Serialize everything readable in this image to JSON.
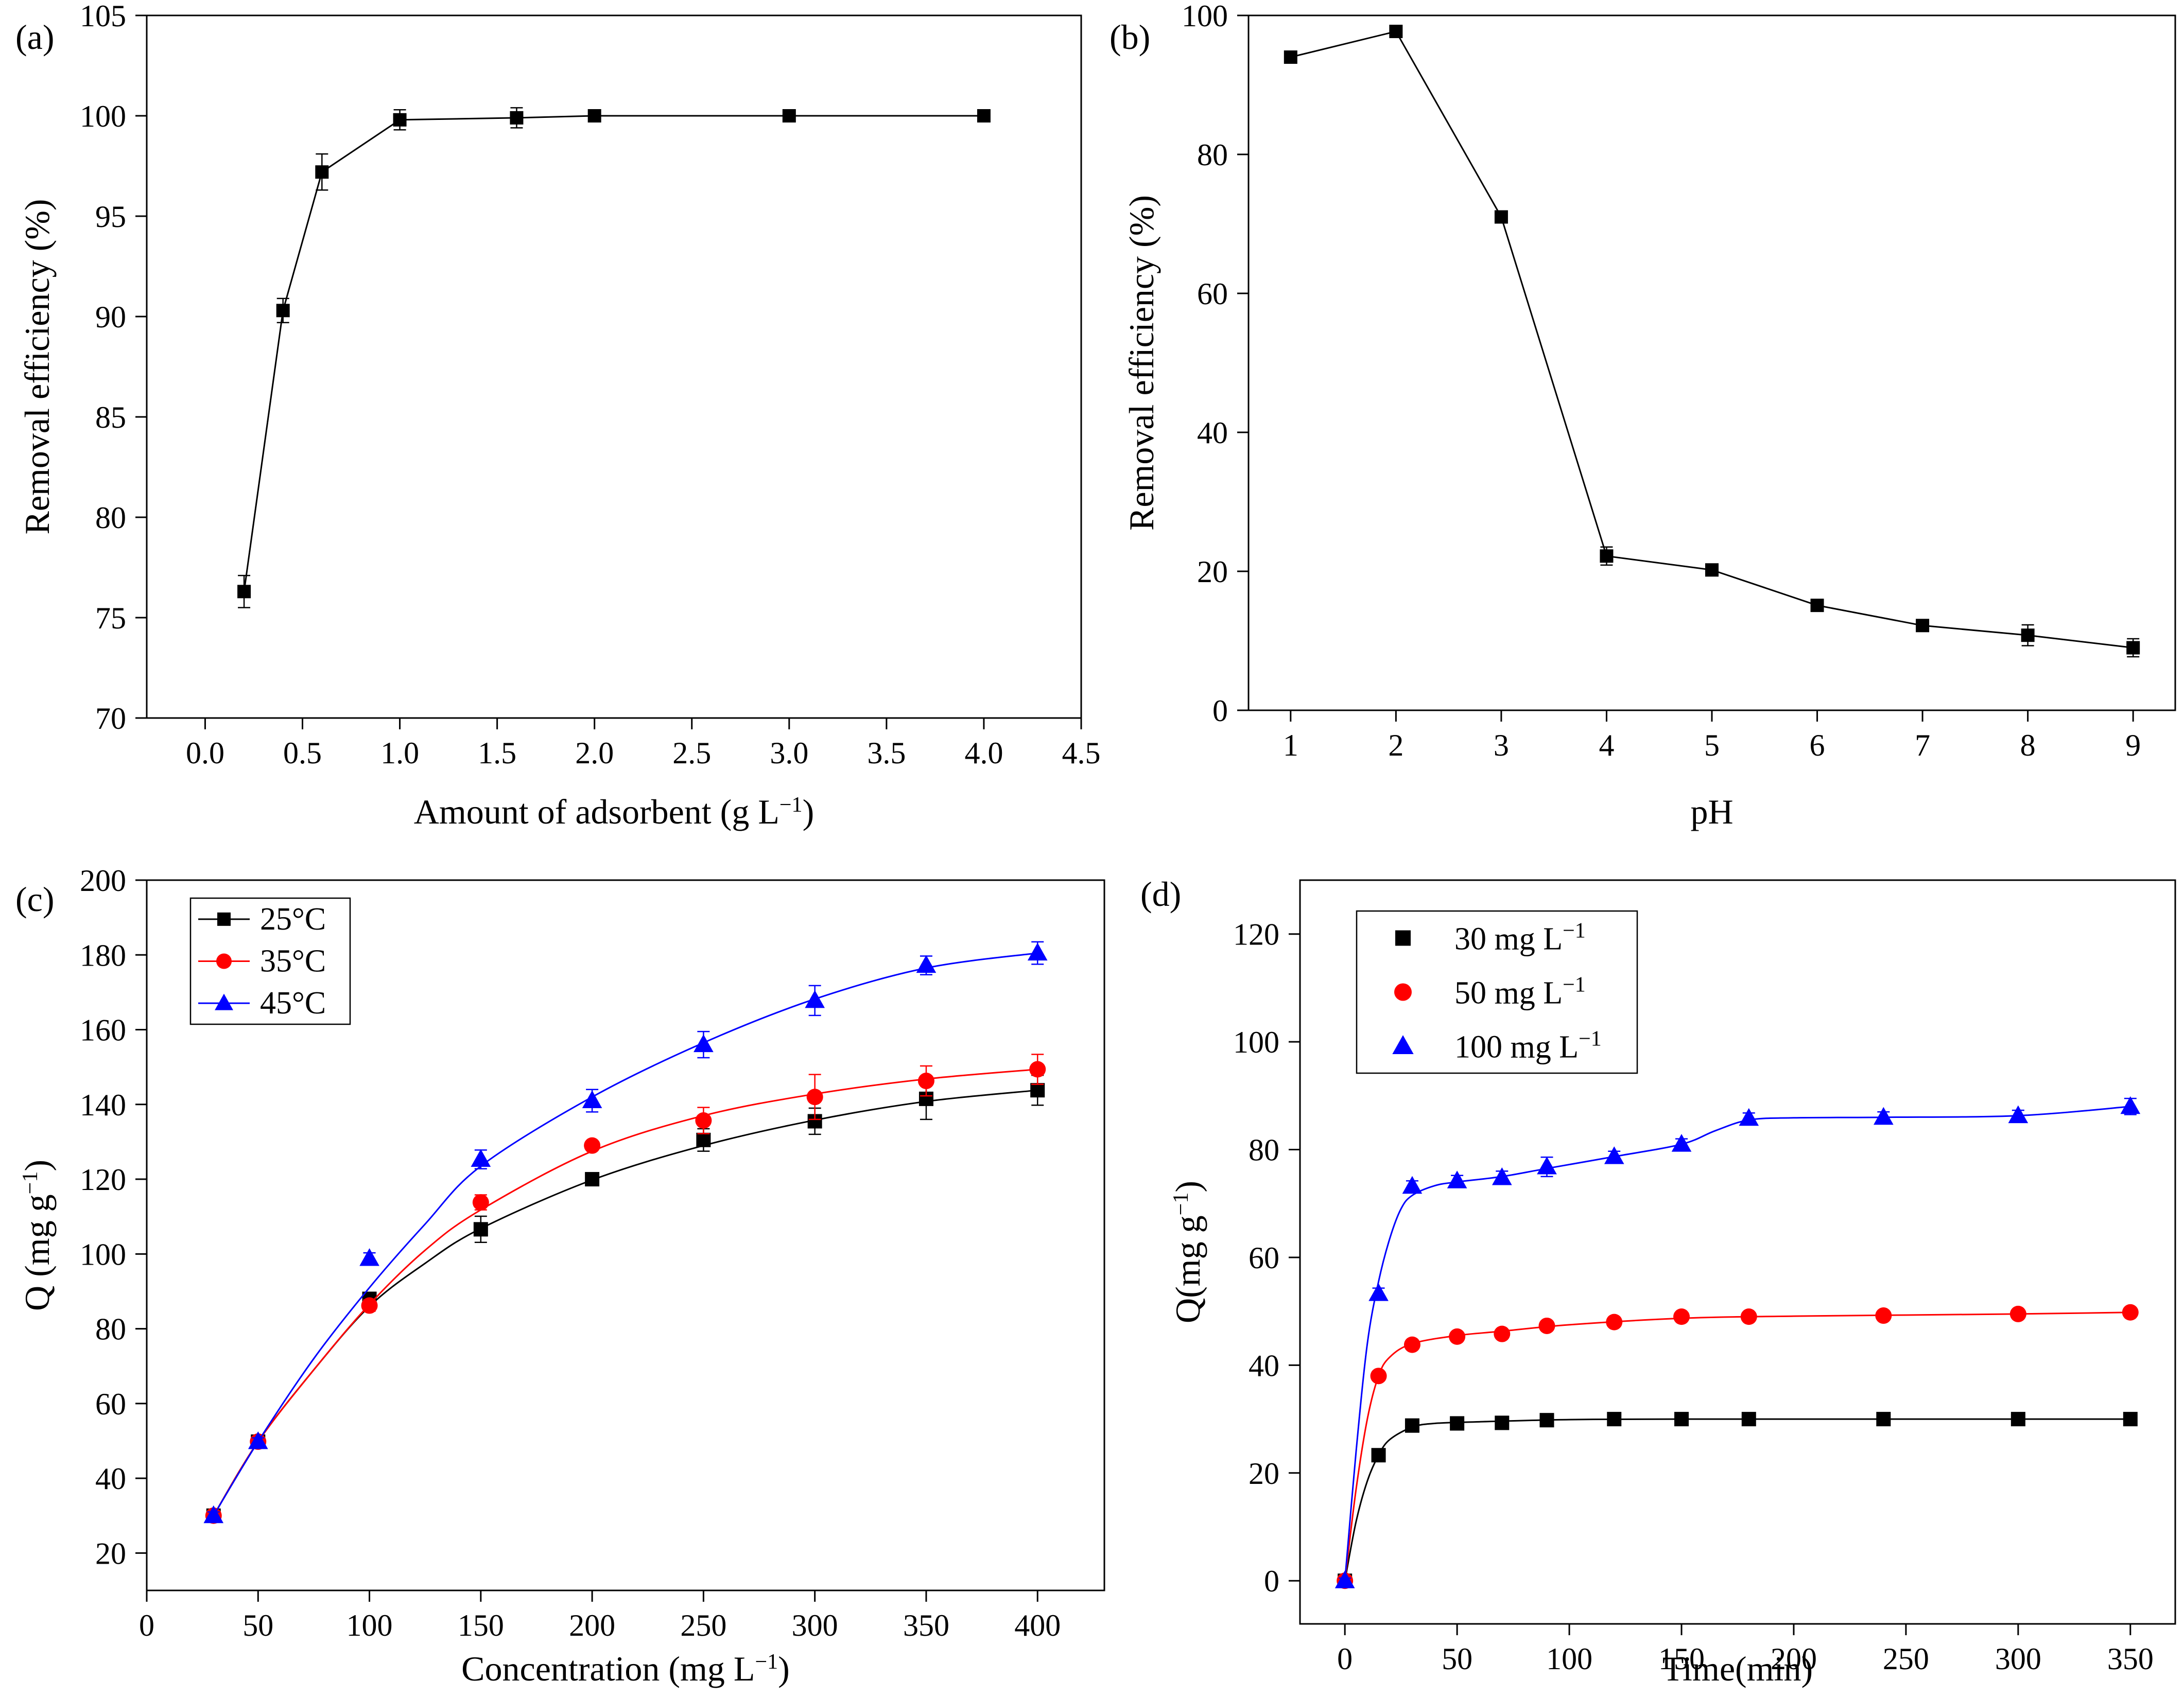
{
  "chart_data": [
    {
      "id": "a",
      "type": "line",
      "panel_label": "(a)",
      "xlabel": "Amount of adsorbent (g L",
      "xlabel_sup": "−1",
      "xlabel_end": ")",
      "ylabel": "Removal efficiency (%)",
      "xlim": [
        -0.3,
        4.5
      ],
      "ylim": [
        70,
        105
      ],
      "xticks": [
        0.0,
        0.5,
        1.0,
        1.5,
        2.0,
        2.5,
        3.0,
        3.5,
        4.0,
        4.5
      ],
      "xtick_labels": [
        "0.0",
        "0.5",
        "1.0",
        "1.5",
        "2.0",
        "2.5",
        "3.0",
        "3.5",
        "4.0",
        "4.5"
      ],
      "yticks": [
        70,
        75,
        80,
        85,
        90,
        95,
        100,
        105
      ],
      "ytick_labels": [
        "70",
        "75",
        "80",
        "85",
        "90",
        "95",
        "100",
        "105"
      ],
      "series": [
        {
          "name": "removal",
          "color": "#000000",
          "marker": "square",
          "x": [
            0.2,
            0.4,
            0.6,
            1.0,
            1.6,
            2.0,
            3.0,
            4.0
          ],
          "y": [
            76.3,
            90.3,
            97.2,
            99.8,
            99.9,
            100.0,
            100.0,
            100.0
          ],
          "err": [
            0.8,
            0.6,
            0.9,
            0.5,
            0.5,
            0.2,
            0.2,
            0.3
          ]
        }
      ]
    },
    {
      "id": "b",
      "type": "line",
      "panel_label": "(b)",
      "xlabel": "pH",
      "ylabel": "Removal efficiency (%)",
      "xlim": [
        0.6,
        9.4
      ],
      "ylim": [
        0,
        100
      ],
      "xticks": [
        1,
        2,
        3,
        4,
        5,
        6,
        7,
        8,
        9
      ],
      "xtick_labels": [
        "1",
        "2",
        "3",
        "4",
        "5",
        "6",
        "7",
        "8",
        "9"
      ],
      "yticks": [
        0,
        20,
        40,
        60,
        80,
        100
      ],
      "ytick_labels": [
        "0",
        "20",
        "40",
        "60",
        "80",
        "100"
      ],
      "series": [
        {
          "name": "removal",
          "color": "#000000",
          "marker": "square",
          "x": [
            1,
            2,
            3,
            4,
            5,
            6,
            7,
            8,
            9
          ],
          "y": [
            94.0,
            97.7,
            71.0,
            22.2,
            20.2,
            15.1,
            12.2,
            10.8,
            9.0
          ],
          "err": [
            0.5,
            0.6,
            0.6,
            1.3,
            0.6,
            0.6,
            0.6,
            1.5,
            1.3
          ]
        }
      ]
    },
    {
      "id": "c",
      "type": "line",
      "panel_label": "(c)",
      "xlabel": "Concentration (mg L",
      "xlabel_sup": "−1",
      "xlabel_end": ")",
      "ylabel": "Q (mg g",
      "ylabel_sup": "−1",
      "ylabel_end": ")",
      "xlim": [
        0,
        430
      ],
      "ylim": [
        10,
        200
      ],
      "xticks": [
        0,
        50,
        100,
        150,
        200,
        250,
        300,
        350,
        400
      ],
      "xtick_labels": [
        "0",
        "50",
        "100",
        "150",
        "200",
        "250",
        "300",
        "350",
        "400"
      ],
      "yticks": [
        20,
        40,
        60,
        80,
        100,
        120,
        140,
        160,
        180,
        200
      ],
      "ytick_labels": [
        "20",
        "40",
        "60",
        "80",
        "100",
        "120",
        "140",
        "160",
        "180",
        "200"
      ],
      "legend_position": "top-left",
      "series": [
        {
          "name": "25°C",
          "color": "#000000",
          "marker": "square",
          "x": [
            30,
            50,
            100,
            150,
            200,
            250,
            300,
            350,
            400
          ],
          "y": [
            30.0,
            49.8,
            88.0,
            106.6,
            120.0,
            130.5,
            135.5,
            141.5,
            143.8
          ],
          "err": [
            1.0,
            1.0,
            1.5,
            3.5,
            1.5,
            3.0,
            3.5,
            5.5,
            4.0
          ],
          "fit": [
            [
              30,
              30.0
            ],
            [
              50,
              49.8
            ],
            [
              75,
              69
            ],
            [
              100,
              86
            ],
            [
              125,
              97.5
            ],
            [
              150,
              106.8
            ],
            [
              200,
              119.8
            ],
            [
              250,
              129.0
            ],
            [
              300,
              135.8
            ],
            [
              350,
              140.8
            ],
            [
              400,
              143.8
            ]
          ]
        },
        {
          "name": "35°C",
          "color": "#ff0000",
          "marker": "circle",
          "x": [
            30,
            50,
            100,
            150,
            200,
            250,
            300,
            350,
            400
          ],
          "y": [
            30.0,
            49.8,
            86.2,
            113.8,
            129.0,
            135.7,
            142.0,
            146.3,
            149.4
          ],
          "err": [
            1.0,
            1.0,
            1.5,
            2.0,
            1.0,
            3.5,
            6.0,
            4.0,
            4.0
          ],
          "fit": [
            [
              30,
              30.0
            ],
            [
              50,
              49.8
            ],
            [
              75,
              69
            ],
            [
              100,
              86.5
            ],
            [
              125,
              101
            ],
            [
              150,
              111.8
            ],
            [
              200,
              127.5
            ],
            [
              250,
              137.0
            ],
            [
              300,
              142.8
            ],
            [
              350,
              146.8
            ],
            [
              400,
              149.4
            ]
          ]
        },
        {
          "name": "45°C",
          "color": "#0000ff",
          "marker": "triangle",
          "x": [
            30,
            50,
            100,
            150,
            200,
            250,
            300,
            350,
            400
          ],
          "y": [
            30.0,
            49.8,
            98.8,
            125.3,
            141.0,
            156.0,
            167.8,
            177.2,
            180.5
          ],
          "err": [
            1.0,
            1.0,
            1.5,
            2.5,
            3.0,
            3.5,
            4.0,
            2.5,
            3.0
          ],
          "fit": [
            [
              30,
              30.0
            ],
            [
              50,
              49.8
            ],
            [
              75,
              72
            ],
            [
              100,
              91
            ],
            [
              125,
              108
            ],
            [
              150,
              123.5
            ],
            [
              200,
              142.0
            ],
            [
              250,
              156.5
            ],
            [
              300,
              168.2
            ],
            [
              350,
              176.5
            ],
            [
              400,
              180.5
            ]
          ]
        }
      ]
    },
    {
      "id": "d",
      "type": "line",
      "panel_label": "(d)",
      "xlabel": "Time(min)",
      "ylabel": "Q(mg g",
      "ylabel_sup": "−1",
      "ylabel_end": ")",
      "xlim": [
        -20,
        370
      ],
      "ylim": [
        -8,
        130
      ],
      "xticks": [
        0,
        50,
        100,
        150,
        200,
        250,
        300,
        350
      ],
      "xtick_labels": [
        "0",
        "50",
        "100",
        "150",
        "200",
        "250",
        "300",
        "350"
      ],
      "yticks": [
        0,
        20,
        40,
        60,
        80,
        100,
        120
      ],
      "ytick_labels": [
        "0",
        "20",
        "40",
        "60",
        "80",
        "100",
        "120"
      ],
      "legend_position": "top-left",
      "series": [
        {
          "name": "30 mg L",
          "name_sup": "−1",
          "color": "#000000",
          "marker": "square",
          "x": [
            0,
            15,
            30,
            50,
            70,
            90,
            120,
            150,
            180,
            240,
            300,
            350
          ],
          "y": [
            0,
            23.3,
            28.8,
            29.2,
            29.3,
            29.8,
            30.0,
            30.0,
            30.0,
            30.0,
            30.0,
            30.0
          ],
          "err": [
            0.5,
            0.8,
            0.8,
            0.8,
            0.6,
            0.6,
            0.5,
            0.5,
            0.5,
            0.5,
            0.5,
            0.5
          ],
          "fit": [
            [
              0,
              0
            ],
            [
              5,
              11
            ],
            [
              10,
              18.5
            ],
            [
              15,
              23.3
            ],
            [
              20,
              26.2
            ],
            [
              30,
              28.5
            ],
            [
              40,
              29.2
            ],
            [
              60,
              29.5
            ],
            [
              100,
              29.9
            ],
            [
              150,
              30.0
            ],
            [
              250,
              30.0
            ],
            [
              350,
              30.0
            ]
          ]
        },
        {
          "name": "50 mg L",
          "name_sup": "−1",
          "color": "#ff0000",
          "marker": "circle",
          "x": [
            0,
            15,
            30,
            50,
            70,
            90,
            120,
            150,
            180,
            240,
            300,
            350
          ],
          "y": [
            0,
            38.0,
            43.8,
            45.3,
            45.8,
            47.3,
            48.0,
            49.0,
            49.0,
            49.2,
            49.5,
            49.8
          ],
          "err": [
            0.5,
            0.8,
            0.8,
            0.8,
            0.8,
            0.8,
            0.6,
            0.6,
            0.5,
            0.5,
            0.5,
            0.5
          ],
          "fit": [
            [
              0,
              0
            ],
            [
              5,
              17
            ],
            [
              10,
              30
            ],
            [
              15,
              38.0
            ],
            [
              20,
              41.5
            ],
            [
              30,
              44.0
            ],
            [
              50,
              45.5
            ],
            [
              70,
              46.3
            ],
            [
              100,
              47.5
            ],
            [
              150,
              48.7
            ],
            [
              200,
              49.1
            ],
            [
              300,
              49.5
            ],
            [
              350,
              49.8
            ]
          ]
        },
        {
          "name": "100 mg L",
          "name_sup": "−1",
          "color": "#0000ff",
          "marker": "triangle",
          "x": [
            0,
            15,
            30,
            50,
            70,
            90,
            120,
            150,
            180,
            240,
            300,
            350
          ],
          "y": [
            0,
            53.3,
            73.2,
            74.2,
            74.8,
            76.8,
            78.7,
            81.0,
            85.8,
            86.0,
            86.3,
            88.0
          ],
          "err": [
            0.5,
            1.0,
            1.0,
            1.0,
            1.2,
            1.8,
            1.0,
            1.0,
            1.0,
            1.0,
            1.0,
            1.5
          ],
          "fit": [
            [
              0,
              0
            ],
            [
              5,
              24
            ],
            [
              10,
              44
            ],
            [
              15,
              55.5
            ],
            [
              20,
              63.5
            ],
            [
              25,
              69
            ],
            [
              30,
              71.5
            ],
            [
              40,
              73.3
            ],
            [
              50,
              74.0
            ],
            [
              70,
              75.0
            ],
            [
              90,
              76.5
            ],
            [
              120,
              78.7
            ],
            [
              150,
              81.0
            ],
            [
              165,
              83.5
            ],
            [
              180,
              85.5
            ],
            [
              200,
              85.9
            ],
            [
              240,
              86.0
            ],
            [
              300,
              86.3
            ],
            [
              350,
              88.0
            ]
          ]
        }
      ]
    }
  ]
}
